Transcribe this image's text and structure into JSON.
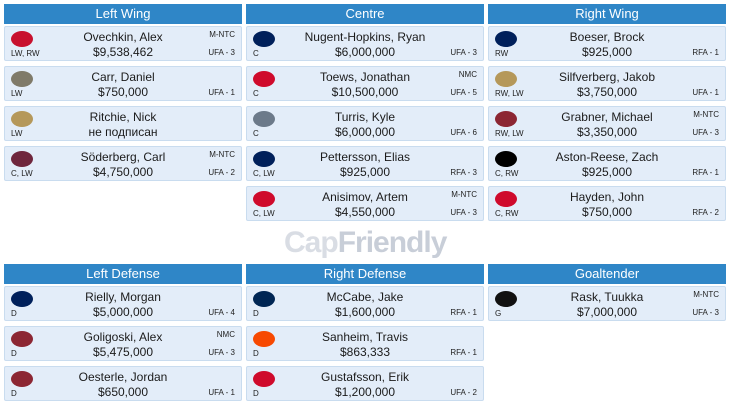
{
  "sections": {
    "left_wing": "Left Wing",
    "centre": "Centre",
    "right_wing": "Right Wing",
    "left_defense": "Left Defense",
    "right_defense": "Right Defense",
    "goaltender": "Goaltender"
  },
  "watermark": {
    "part1": "Cap",
    "part2": "Friendly"
  },
  "players": {
    "lw1": {
      "name": "Ovechkin, Alex",
      "salary": "$9,538,462",
      "pos": "LW, RW",
      "tag": "M-NTC",
      "contract": "UFA - 3",
      "team": "WSH",
      "color": "#c8102e"
    },
    "lw2": {
      "name": "Carr, Daniel",
      "salary": "$750,000",
      "pos": "LW",
      "tag": "",
      "contract": "UFA - 1",
      "team": "VGK",
      "color": "#7f7a69"
    },
    "lw3": {
      "name": "Ritchie, Nick",
      "salary": "не подписан",
      "pos": "LW",
      "tag": "",
      "contract": "",
      "team": "ANA",
      "color": "#b5985a"
    },
    "lw4": {
      "name": "Söderberg, Carl",
      "salary": "$4,750,000",
      "pos": "C, LW",
      "tag": "M-NTC",
      "contract": "UFA - 2",
      "team": "COL",
      "color": "#6f263d"
    },
    "c1": {
      "name": "Nugent-Hopkins, Ryan",
      "salary": "$6,000,000",
      "pos": "C",
      "tag": "",
      "contract": "UFA - 3",
      "team": "EDM",
      "color": "#00205b"
    },
    "c2": {
      "name": "Toews, Jonathan",
      "salary": "$10,500,000",
      "pos": "C",
      "tag": "NMC",
      "contract": "UFA - 5",
      "team": "CHI",
      "color": "#cf0a2c"
    },
    "c3": {
      "name": "Turris, Kyle",
      "salary": "$6,000,000",
      "pos": "C",
      "tag": "",
      "contract": "UFA - 6",
      "team": "NSH",
      "color": "#6c7a8a"
    },
    "c4": {
      "name": "Pettersson, Elias",
      "salary": "$925,000",
      "pos": "C, LW",
      "tag": "",
      "contract": "RFA - 3",
      "team": "VAN",
      "color": "#00205b"
    },
    "c5": {
      "name": "Anisimov, Artem",
      "salary": "$4,550,000",
      "pos": "C, LW",
      "tag": "M-NTC",
      "contract": "UFA - 3",
      "team": "CHI",
      "color": "#cf0a2c"
    },
    "rw1": {
      "name": "Boeser, Brock",
      "salary": "$925,000",
      "pos": "RW",
      "tag": "",
      "contract": "RFA - 1",
      "team": "VAN",
      "color": "#00205b"
    },
    "rw2": {
      "name": "Silfverberg, Jakob",
      "salary": "$3,750,000",
      "pos": "RW, LW",
      "tag": "",
      "contract": "UFA - 1",
      "team": "ANA",
      "color": "#b5985a"
    },
    "rw3": {
      "name": "Grabner, Michael",
      "salary": "$3,350,000",
      "pos": "RW, LW",
      "tag": "M-NTC",
      "contract": "UFA - 3",
      "team": "ARI",
      "color": "#8c2633"
    },
    "rw4": {
      "name": "Aston-Reese, Zach",
      "salary": "$925,000",
      "pos": "C, RW",
      "tag": "",
      "contract": "RFA - 1",
      "team": "PIT",
      "color": "#000000"
    },
    "rw5": {
      "name": "Hayden, John",
      "salary": "$750,000",
      "pos": "C, RW",
      "tag": "",
      "contract": "RFA - 2",
      "team": "CHI",
      "color": "#cf0a2c"
    },
    "ld1": {
      "name": "Rielly, Morgan",
      "salary": "$5,000,000",
      "pos": "D",
      "tag": "",
      "contract": "UFA - 4",
      "team": "TOR",
      "color": "#00205b"
    },
    "ld2": {
      "name": "Goligoski, Alex",
      "salary": "$5,475,000",
      "pos": "D",
      "tag": "NMC",
      "contract": "UFA - 3",
      "team": "ARI",
      "color": "#8c2633"
    },
    "ld3": {
      "name": "Oesterle, Jordan",
      "salary": "$650,000",
      "pos": "D",
      "tag": "",
      "contract": "UFA - 1",
      "team": "ARI",
      "color": "#8c2633"
    },
    "rd1": {
      "name": "McCabe, Jake",
      "salary": "$1,600,000",
      "pos": "D",
      "tag": "",
      "contract": "RFA - 1",
      "team": "BUF",
      "color": "#002654"
    },
    "rd2": {
      "name": "Sanheim, Travis",
      "salary": "$863,333",
      "pos": "D",
      "tag": "",
      "contract": "RFA - 1",
      "team": "PHI",
      "color": "#f74902"
    },
    "rd3": {
      "name": "Gustafsson, Erik",
      "salary": "$1,200,000",
      "pos": "D",
      "tag": "",
      "contract": "UFA - 2",
      "team": "CHI",
      "color": "#cf0a2c"
    },
    "g1": {
      "name": "Rask, Tuukka",
      "salary": "$7,000,000",
      "pos": "G",
      "tag": "M-NTC",
      "contract": "UFA - 3",
      "team": "BOS",
      "color": "#111111"
    }
  }
}
